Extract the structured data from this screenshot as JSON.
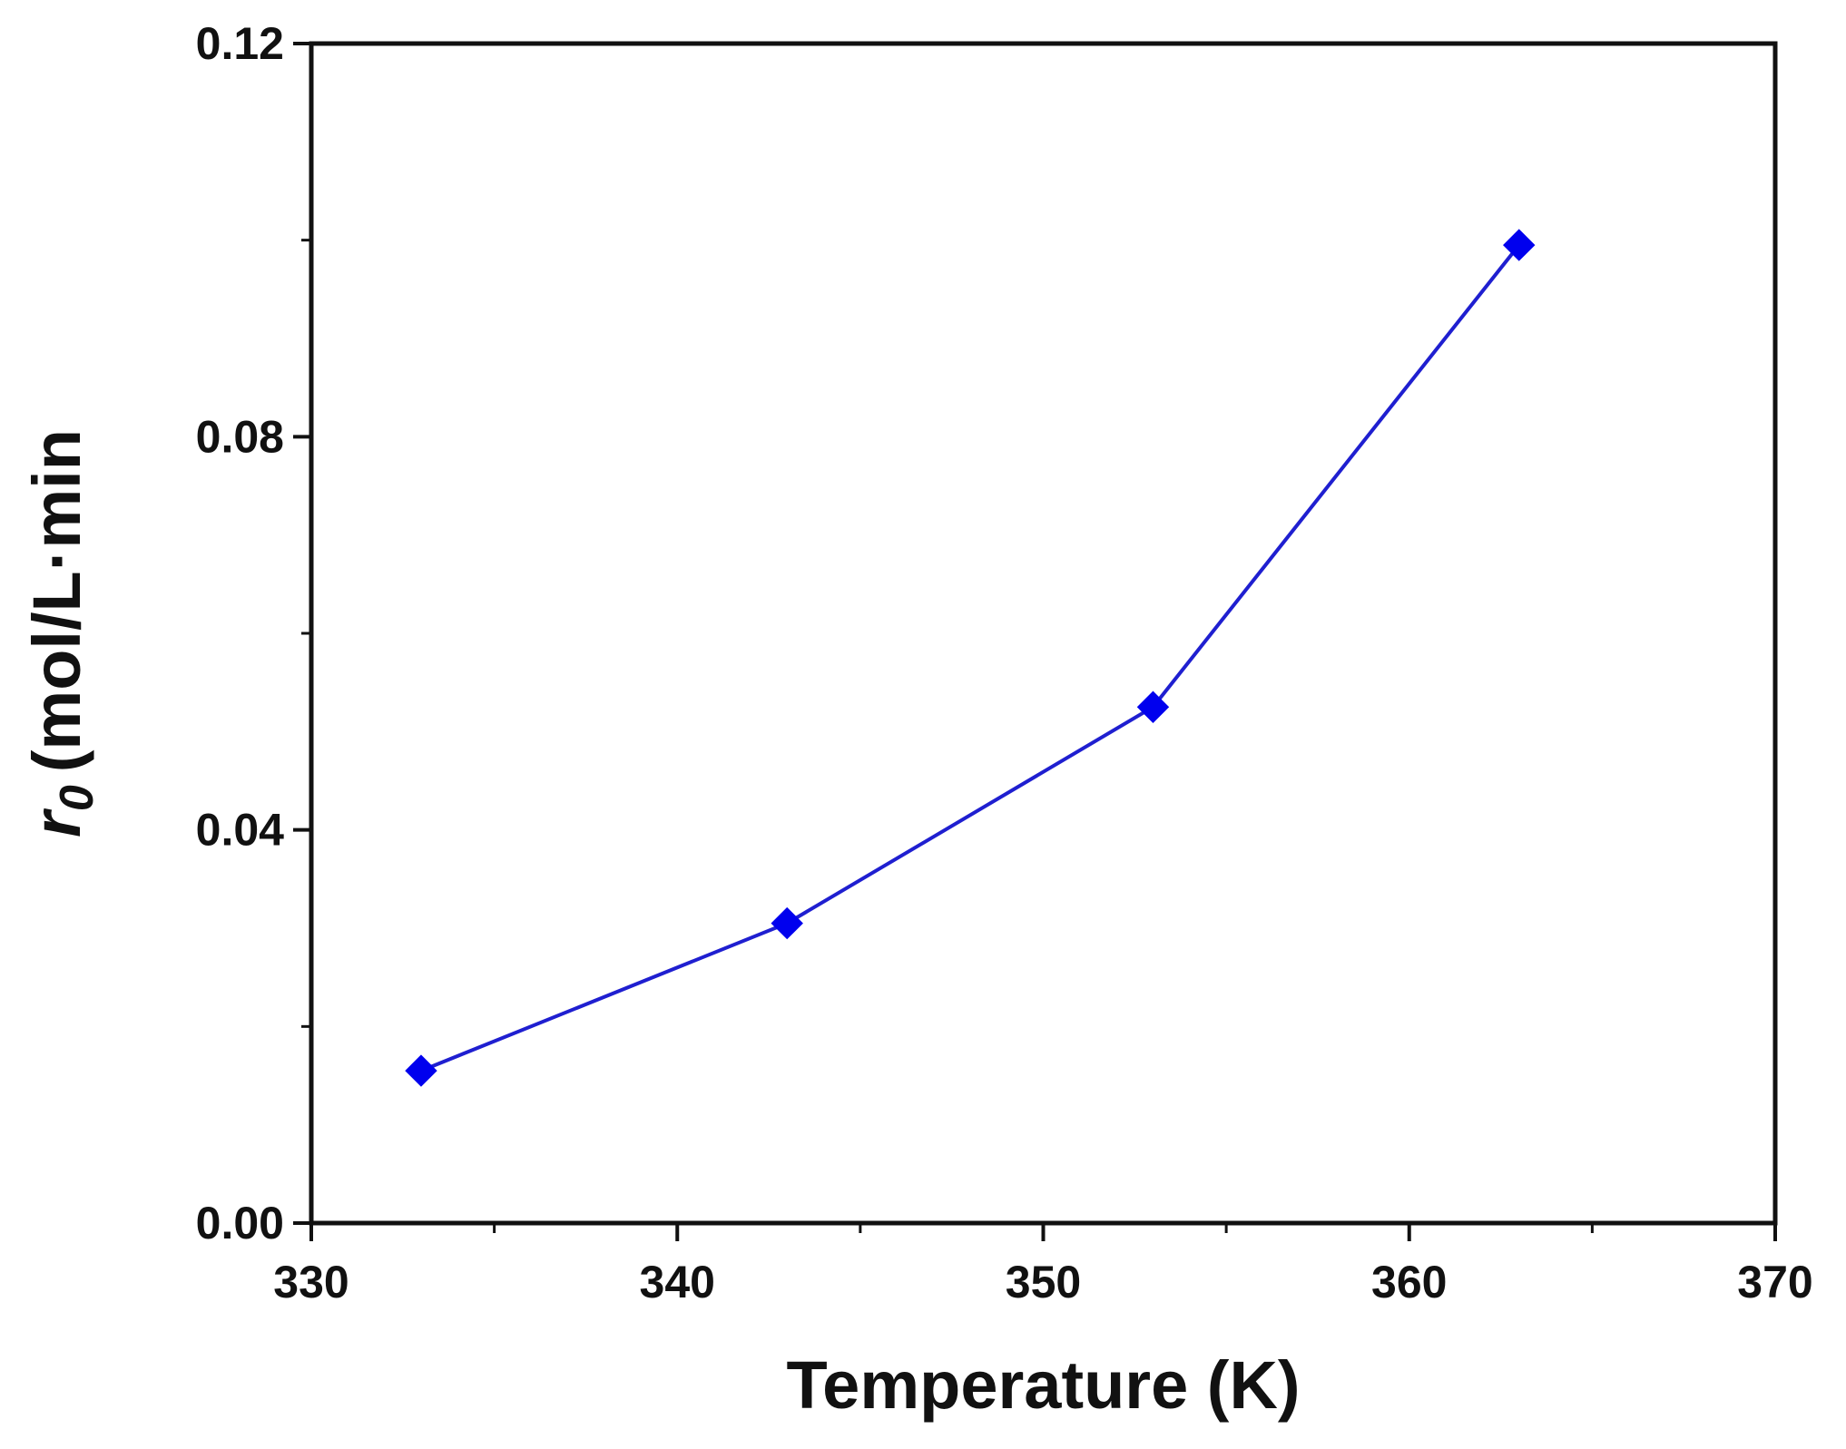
{
  "chart_data": {
    "type": "line",
    "x": [
      333,
      343,
      353,
      363
    ],
    "series": [
      {
        "values": [
          0.0155,
          0.0305,
          0.0525,
          0.0995
        ],
        "color": "#1f1fd0",
        "marker": "diamond",
        "marker_color": "#0000ee"
      }
    ],
    "xlabel": "Temperature (K)",
    "ylabel": {
      "symbol": "r",
      "subscript": "0",
      "units": "(mol/L·min"
    },
    "xlim": [
      330,
      370
    ],
    "ylim": [
      0,
      0.12
    ],
    "xticks": [
      330,
      340,
      350,
      360,
      370
    ],
    "xtick_labels": [
      "330",
      "340",
      "350",
      "360",
      "370"
    ],
    "yticks": [
      0,
      0.04,
      0.08,
      0.12
    ],
    "ytick_labels": [
      "0.00",
      "0.04",
      "0.08",
      "0.12"
    ],
    "x_minor_ticks": [
      335,
      345,
      355,
      365
    ],
    "y_minor_ticks": [
      0.02,
      0.06,
      0.1
    ],
    "grid": false,
    "legend": "none"
  }
}
